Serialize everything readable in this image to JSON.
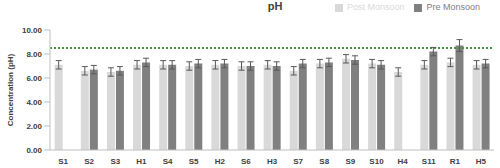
{
  "chart_data": {
    "type": "bar",
    "title": "pH",
    "y_label": "Concentration (pH)",
    "categories": [
      "S1",
      "S2",
      "S3",
      "H1",
      "S4",
      "S5",
      "H2",
      "S6",
      "H3",
      "S7",
      "S8",
      "S9",
      "S10",
      "H4",
      "S11",
      "R1",
      "H5"
    ],
    "series": [
      {
        "name": "Post Monsoon",
        "color": "#d9d9d9",
        "values": [
          7.1,
          6.6,
          6.5,
          7.1,
          7.1,
          7.0,
          7.1,
          7.0,
          7.1,
          6.6,
          7.2,
          7.6,
          7.2,
          6.5,
          7.1,
          7.3,
          7.1
        ],
        "errors": [
          0.35,
          0.35,
          0.35,
          0.35,
          0.35,
          0.35,
          0.35,
          0.35,
          0.35,
          0.35,
          0.35,
          0.35,
          0.35,
          0.35,
          0.35,
          0.35,
          0.35
        ]
      },
      {
        "name": "Pre Monsoon",
        "color": "#808080",
        "values": [
          null,
          6.7,
          6.6,
          7.3,
          7.1,
          7.2,
          7.2,
          7.0,
          7.0,
          7.2,
          7.3,
          7.5,
          7.1,
          null,
          8.2,
          8.7,
          7.2
        ],
        "errors": [
          null,
          0.35,
          0.35,
          0.35,
          0.35,
          0.35,
          0.35,
          0.35,
          0.35,
          0.35,
          0.35,
          0.35,
          0.35,
          null,
          0.35,
          0.5,
          0.35
        ]
      }
    ],
    "ylim": [
      0,
      10
    ],
    "yticks": [
      {
        "value": 0,
        "label": "0.00"
      },
      {
        "value": 2,
        "label": "2.00"
      },
      {
        "value": 4,
        "label": "4.00"
      },
      {
        "value": 6,
        "label": "6.00"
      },
      {
        "value": 8,
        "label": "8.00"
      },
      {
        "value": 10,
        "label": "10.00"
      }
    ],
    "reference_line": {
      "y": 8.5,
      "color": "#3a9a3a",
      "line_style": "dotted"
    },
    "grid": false,
    "legend": "upper right"
  }
}
